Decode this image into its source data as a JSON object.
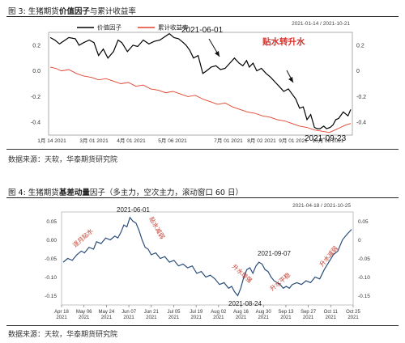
{
  "figure3": {
    "caption_prefix": "图 3:",
    "caption_a": "生猪期货",
    "caption_b": "价值因子",
    "caption_c": "与累计收益率",
    "source": "数据来源：天软，华泰期货研究院"
  },
  "figure4": {
    "caption_prefix": "图 4:",
    "caption_a": "生猪期货",
    "caption_b": "基差动量",
    "caption_c": "因子（多主力，空次主力，滚动窗口 60 日）",
    "source": "数据来源：天软，华泰期货研究院"
  },
  "chart_data": [
    {
      "type": "line",
      "date_range": "2021-01-14 / 2021-10-21",
      "x_ticks": [
        "1月 14 2021",
        "3月 01 2021",
        "4月 01 2021",
        "5月 06 2021",
        "7月 01 2021",
        "8月 02 2021",
        "9月 01 2021",
        "10月 08 2021"
      ],
      "ylim": [
        -0.5,
        0.3
      ],
      "left_ticks": [
        "0.2",
        "0.0",
        "-0.2",
        "-0.4"
      ],
      "right_ticks": [
        "0.2",
        "0",
        "-0.2",
        "-0.4"
      ],
      "grid": false,
      "legend_position": "top-center",
      "series": [
        {
          "name": "价值因子",
          "color": "#000000",
          "x": [
            0,
            5,
            10,
            14,
            20,
            27,
            31,
            36,
            42,
            47,
            52,
            57,
            62,
            68,
            73,
            77,
            83,
            89,
            94,
            100,
            106,
            112,
            118,
            124,
            128,
            133,
            138,
            143,
            146,
            150,
            154,
            159,
            164,
            168,
            173,
            178,
            183,
            188,
            193,
            198,
            203,
            207,
            211,
            214,
            218,
            222,
            227,
            232,
            237,
            242,
            246,
            251,
            256,
            260,
            264,
            268,
            272,
            276,
            280,
            284,
            287,
            290,
            294,
            297,
            301,
            304,
            307,
            310,
            315,
            320,
            323
          ],
          "y": [
            0.26,
            0.24,
            0.21,
            0.23,
            0.26,
            0.25,
            0.2,
            0.22,
            0.24,
            0.22,
            0.12,
            0.17,
            0.1,
            0.15,
            0.24,
            0.22,
            0.15,
            0.2,
            0.19,
            0.24,
            0.21,
            0.23,
            0.24,
            0.27,
            0.29,
            0.26,
            0.25,
            0.22,
            0.2,
            0.16,
            0.1,
            0.12,
            -0.02,
            0.0,
            0.03,
            0.04,
            0.01,
            0.02,
            0.06,
            0.1,
            0.06,
            0.04,
            0.08,
            0.03,
            0.06,
            0.0,
            0.02,
            -0.02,
            -0.05,
            -0.09,
            -0.12,
            -0.16,
            -0.14,
            -0.18,
            -0.22,
            -0.29,
            -0.28,
            -0.38,
            -0.34,
            -0.44,
            -0.45,
            -0.45,
            -0.43,
            -0.45,
            -0.44,
            -0.42,
            -0.38,
            -0.37,
            -0.32,
            -0.35,
            -0.3
          ]
        },
        {
          "name": "累计收益率",
          "color": "#e0402a",
          "x": [
            0,
            6,
            12,
            20,
            28,
            36,
            44,
            52,
            60,
            68,
            76,
            84,
            92,
            100,
            108,
            116,
            124,
            132,
            140,
            148,
            156,
            164,
            172,
            180,
            188,
            196,
            204,
            212,
            220,
            228,
            236,
            244,
            252,
            260,
            268,
            276,
            284,
            292,
            300,
            306,
            312,
            318,
            323
          ],
          "y": [
            0.03,
            0.02,
            0.0,
            0.01,
            -0.02,
            -0.04,
            -0.05,
            -0.07,
            -0.06,
            -0.08,
            -0.1,
            -0.09,
            -0.12,
            -0.11,
            -0.14,
            -0.15,
            -0.17,
            -0.16,
            -0.18,
            -0.2,
            -0.19,
            -0.22,
            -0.24,
            -0.26,
            -0.25,
            -0.28,
            -0.3,
            -0.32,
            -0.33,
            -0.35,
            -0.36,
            -0.38,
            -0.39,
            -0.41,
            -0.43,
            -0.44,
            -0.46,
            -0.47,
            -0.48,
            -0.46,
            -0.44,
            -0.42,
            -0.41
          ]
        }
      ],
      "annotations": [
        {
          "text": "2021-06-01",
          "color": "#111111"
        },
        {
          "text": "贴水转升水",
          "color": "#d9302a"
        },
        {
          "text": "2021-09-23",
          "color": "#111111"
        }
      ]
    },
    {
      "type": "line",
      "date_range": "2021-04-18 / 2021-10-25",
      "x_ticks": [
        {
          "label": "Apr 18",
          "year": "2021"
        },
        {
          "label": "May 06",
          "year": "2021"
        },
        {
          "label": "May 24",
          "year": "2021"
        },
        {
          "label": "Jun 07",
          "year": "2021"
        },
        {
          "label": "Jun 21",
          "year": "2021"
        },
        {
          "label": "Jul 05",
          "year": "2021"
        },
        {
          "label": "Jul 19",
          "year": "2021"
        },
        {
          "label": "Aug 02",
          "year": "2021"
        },
        {
          "label": "Aug 16",
          "year": "2021"
        },
        {
          "label": "Aug 30",
          "year": "2021"
        },
        {
          "label": "Sep 13",
          "year": "2021"
        },
        {
          "label": "Sep 27",
          "year": "2021"
        },
        {
          "label": "Oct 11",
          "year": "2021"
        },
        {
          "label": "Oct 25",
          "year": "2021"
        }
      ],
      "ylim": [
        -0.175,
        0.075
      ],
      "y_ticks": [
        0.05,
        0.0,
        -0.05,
        -0.1,
        -0.15
      ],
      "left_tick_labels": [
        "0.05",
        "0.00",
        "-0.05",
        "-0.10",
        "-0.15"
      ],
      "right_tick_labels": [
        "0.05",
        "0",
        "-0.05",
        "-0.10",
        "-0.15"
      ],
      "grid": false,
      "series": [
        {
          "name": "",
          "color": "#2a4d7a",
          "x": [
            0,
            3,
            6,
            9,
            12,
            14,
            17,
            20,
            22,
            25,
            28,
            31,
            34,
            36,
            38,
            40,
            42,
            44,
            46,
            48,
            50,
            52,
            54,
            56,
            58,
            61,
            64,
            67,
            70,
            73,
            76,
            79,
            82,
            85,
            88,
            91,
            94,
            97,
            100,
            103,
            106,
            109,
            111,
            113,
            115,
            117,
            119,
            121,
            123,
            125,
            127,
            129,
            131,
            133,
            135,
            137,
            139,
            141,
            143,
            145,
            147,
            149,
            151,
            154,
            157,
            160,
            163,
            166,
            169,
            172,
            175,
            178,
            181,
            184,
            187,
            190
          ],
          "y": [
            -0.06,
            -0.05,
            -0.055,
            -0.04,
            -0.03,
            -0.035,
            -0.02,
            -0.025,
            -0.005,
            -0.01,
            0.005,
            0.0,
            0.01,
            0.005,
            0.02,
            0.04,
            0.035,
            0.06,
            0.05,
            0.045,
            0.025,
            0.0,
            -0.02,
            -0.025,
            -0.04,
            -0.035,
            -0.05,
            -0.045,
            -0.06,
            -0.055,
            -0.07,
            -0.065,
            -0.075,
            -0.07,
            -0.09,
            -0.085,
            -0.1,
            -0.095,
            -0.105,
            -0.12,
            -0.115,
            -0.13,
            -0.125,
            -0.14,
            -0.15,
            -0.13,
            -0.1,
            -0.08,
            -0.075,
            -0.09,
            -0.07,
            -0.06,
            -0.065,
            -0.08,
            -0.085,
            -0.1,
            -0.11,
            -0.115,
            -0.12,
            -0.13,
            -0.125,
            -0.13,
            -0.12,
            -0.115,
            -0.12,
            -0.11,
            -0.115,
            -0.1,
            -0.105,
            -0.08,
            -0.06,
            -0.04,
            -0.03,
            0.0,
            0.015,
            0.028
          ]
        }
      ],
      "annotations": [
        {
          "text": "2021-06-01",
          "color": "#222222"
        },
        {
          "text": "2021-09-07",
          "color": "#222222"
        },
        {
          "text": "2021-08-24",
          "color": "#222222"
        },
        {
          "text": "逐月贴水",
          "color": "#c0392b"
        },
        {
          "text": "贴水减弱",
          "color": "#c0392b"
        },
        {
          "text": "升水增强",
          "color": "#c0392b"
        },
        {
          "text": "升水平稳",
          "color": "#c0392b"
        },
        {
          "text": "升水减弱",
          "color": "#c0392b"
        }
      ]
    }
  ]
}
